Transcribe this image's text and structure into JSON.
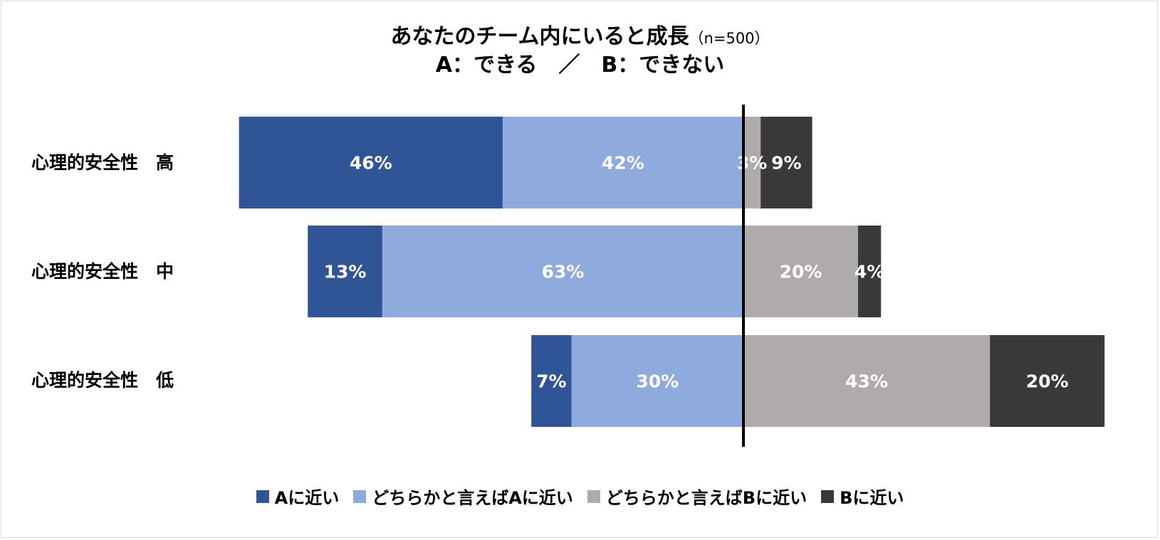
{
  "chart_data": {
    "type": "bar",
    "orientation": "horizontal",
    "stacked": "diverging",
    "title": "あなたのチーム内にいると成長",
    "title_note": "（n=500）",
    "subtitle": "A：できる　／　B：できない",
    "categories": [
      "心理的安全性　高",
      "心理的安全性　中",
      "心理的安全性　低"
    ],
    "series": [
      {
        "name": "Aに近い",
        "color": "#2f5597",
        "values": [
          46,
          13,
          7
        ],
        "side": "left"
      },
      {
        "name": "どちらかと言えばAに近い",
        "color": "#8faadc",
        "values": [
          42,
          63,
          30
        ],
        "side": "left"
      },
      {
        "name": "どちらかと言えばBに近い",
        "color": "#afabab",
        "values": [
          3,
          20,
          43
        ],
        "side": "right"
      },
      {
        "name": "Bに近い",
        "color": "#3b3838",
        "values": [
          9,
          4,
          20
        ],
        "side": "right"
      }
    ],
    "unit": "%",
    "legend": "bottom",
    "grid": false,
    "center_line": true
  }
}
